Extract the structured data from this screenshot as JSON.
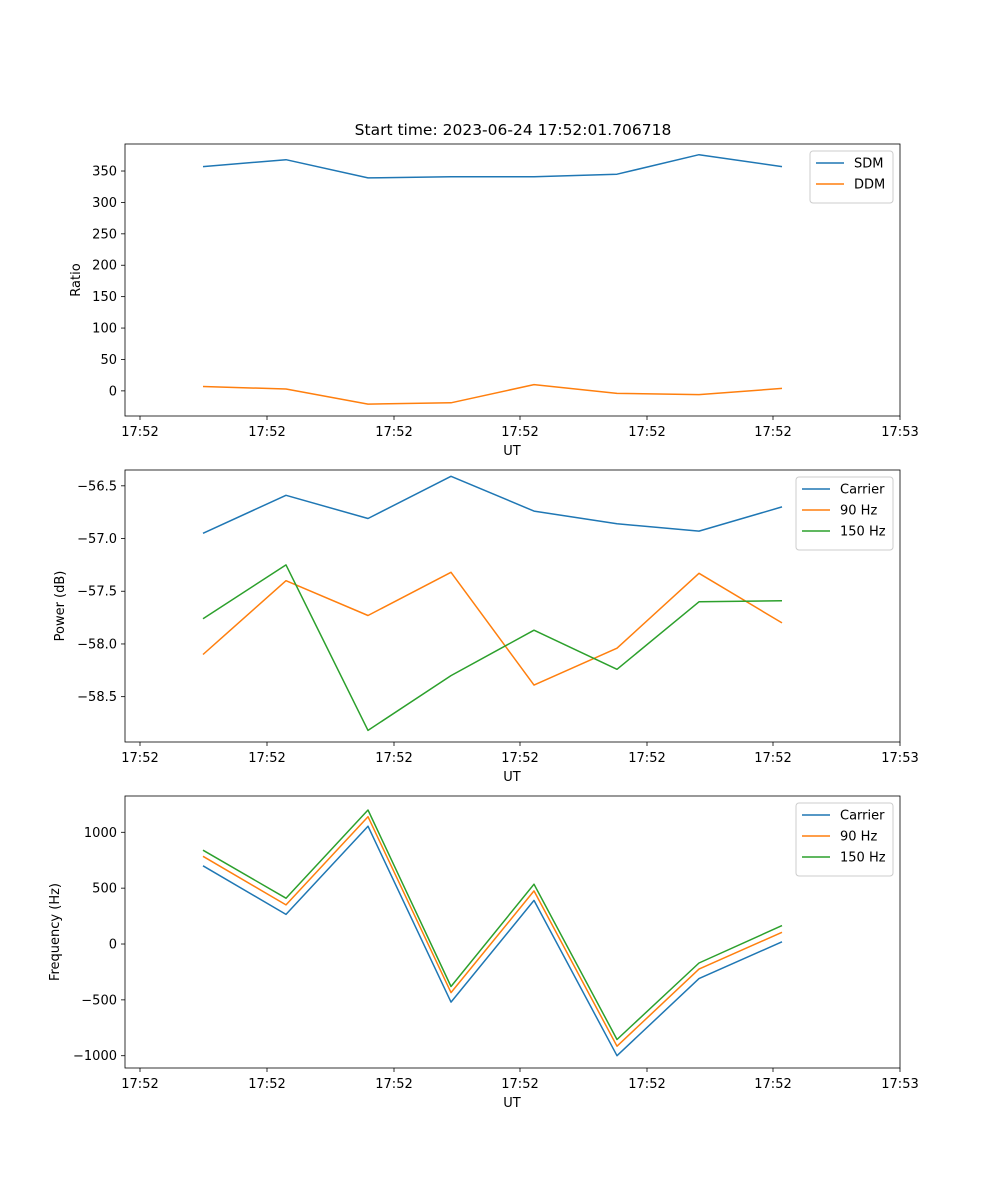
{
  "figure": {
    "title": "Start time: 2023-06-24 17:52:01.706718"
  },
  "chart_data": [
    {
      "type": "line",
      "xlabel": "UT",
      "ylabel": "Ratio",
      "x_tick_labels": [
        "17:52",
        "17:52",
        "17:52",
        "17:52",
        "17:52",
        "17:52",
        "17:52",
        "17:53"
      ],
      "y_ticks": [
        0,
        50,
        100,
        150,
        200,
        250,
        300,
        350
      ],
      "ylim": [
        -40,
        393
      ],
      "legend_position": "upper right",
      "grid": false,
      "series": [
        {
          "name": "SDM",
          "color": "#1f77b4",
          "values": [
            357,
            368,
            339,
            341,
            341,
            345,
            376,
            357
          ]
        },
        {
          "name": "DDM",
          "color": "#ff7f0e",
          "values": [
            7,
            3,
            -21,
            -19,
            10,
            -4,
            -6,
            4
          ]
        }
      ]
    },
    {
      "type": "line",
      "xlabel": "UT",
      "ylabel": "Power (dB)",
      "x_tick_labels": [
        "17:52",
        "17:52",
        "17:52",
        "17:52",
        "17:52",
        "17:52",
        "17:52",
        "17:53"
      ],
      "y_ticks": [
        -58.5,
        -58.0,
        -57.5,
        -57.0,
        -56.5
      ],
      "y_tick_labels": [
        "−58.5",
        "−58.0",
        "−57.5",
        "−57.0",
        "−56.5"
      ],
      "ylim": [
        -58.93,
        -56.35
      ],
      "legend_position": "upper right",
      "grid": false,
      "series": [
        {
          "name": "Carrier",
          "color": "#1f77b4",
          "values": [
            -56.95,
            -56.59,
            -56.81,
            -56.41,
            -56.74,
            -56.86,
            -56.93,
            -56.7
          ]
        },
        {
          "name": "90 Hz",
          "color": "#ff7f0e",
          "values": [
            -58.1,
            -57.4,
            -57.73,
            -57.32,
            -58.39,
            -58.04,
            -57.33,
            -57.8
          ]
        },
        {
          "name": "150 Hz",
          "color": "#2ca02c",
          "values": [
            -57.76,
            -57.25,
            -58.82,
            -58.3,
            -57.87,
            -58.24,
            -57.6,
            -57.59
          ]
        }
      ]
    },
    {
      "type": "line",
      "xlabel": "UT",
      "ylabel": "Frequency (Hz)",
      "x_tick_labels": [
        "17:52",
        "17:52",
        "17:52",
        "17:52",
        "17:52",
        "17:52",
        "17:52",
        "17:53"
      ],
      "y_ticks": [
        -1000,
        -500,
        0,
        500,
        1000
      ],
      "y_tick_labels": [
        "−1000",
        "−500",
        "0",
        "500",
        "1000"
      ],
      "ylim": [
        -1110,
        1325
      ],
      "legend_position": "upper right",
      "grid": false,
      "series": [
        {
          "name": "Carrier",
          "color": "#1f77b4",
          "values": [
            700,
            265,
            1055,
            -520,
            390,
            -1000,
            -310,
            20
          ]
        },
        {
          "name": "90 Hz",
          "color": "#ff7f0e",
          "values": [
            785,
            350,
            1140,
            -435,
            475,
            -915,
            -225,
            105
          ]
        },
        {
          "name": "150 Hz",
          "color": "#2ca02c",
          "values": [
            840,
            410,
            1200,
            -380,
            535,
            -855,
            -170,
            165
          ]
        }
      ]
    }
  ]
}
